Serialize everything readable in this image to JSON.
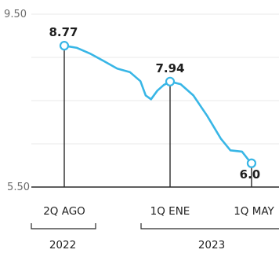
{
  "chart_data": {
    "type": "line",
    "ylim": [
      5.5,
      9.5
    ],
    "y_ticks": [
      "9.50",
      "5.50"
    ],
    "grid": true,
    "categories": [
      "2Q AGO",
      "1Q ENE",
      "1Q MAY"
    ],
    "years": [
      "2022",
      "2023"
    ],
    "series": [
      {
        "values": [
          {
            "x": 0,
            "y": 8.77
          },
          {
            "x": 0.12,
            "y": 8.72
          },
          {
            "x": 0.25,
            "y": 8.58
          },
          {
            "x": 0.37,
            "y": 8.42
          },
          {
            "x": 0.5,
            "y": 8.24
          },
          {
            "x": 0.62,
            "y": 8.16
          },
          {
            "x": 0.72,
            "y": 7.95
          },
          {
            "x": 0.77,
            "y": 7.62
          },
          {
            "x": 0.82,
            "y": 7.53
          },
          {
            "x": 0.88,
            "y": 7.73
          },
          {
            "x": 0.94,
            "y": 7.86
          },
          {
            "x": 1.0,
            "y": 7.94
          },
          {
            "x": 1.1,
            "y": 7.88
          },
          {
            "x": 1.22,
            "y": 7.62
          },
          {
            "x": 1.35,
            "y": 7.15
          },
          {
            "x": 1.48,
            "y": 6.62
          },
          {
            "x": 1.57,
            "y": 6.35
          },
          {
            "x": 1.68,
            "y": 6.32
          },
          {
            "x": 1.75,
            "y": 6.1
          },
          {
            "x": 1.77,
            "y": 6.05
          }
        ]
      }
    ],
    "data_labels": [
      {
        "text": "8.77",
        "x": 0,
        "y": 8.77
      },
      {
        "text": "7.94",
        "x": 1.0,
        "y": 7.94
      },
      {
        "text": "6.0",
        "x": 1.77,
        "y": 6.05
      }
    ],
    "colors": {
      "line": "#38b6e6",
      "marker_fill": "#ffffff",
      "axis": "#2a2a2a",
      "grid": "#e9e9e9",
      "text": "#222222"
    }
  }
}
